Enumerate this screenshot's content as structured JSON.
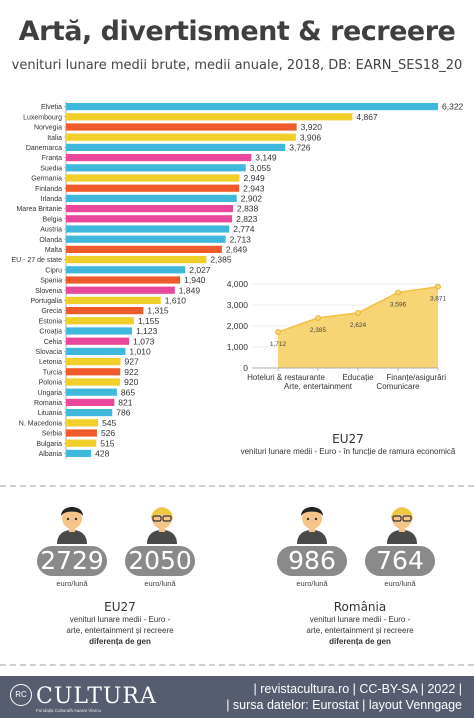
{
  "header": {
    "title": "Artă, divertisment & recreere",
    "subtitle": "venituri lunare medii brute, medii anuale, 2018, DB: EARN_SES18_20"
  },
  "chart_data": [
    {
      "type": "bar",
      "orientation": "horizontal",
      "categories": [
        "Elveția",
        "Luxembourg",
        "Norvegia",
        "Italia",
        "Danemarca",
        "Franța",
        "Suedia",
        "Germania",
        "Finlanda",
        "Irlanda",
        "Marea Britanie",
        "Belgia",
        "Austria",
        "Olanda",
        "Malta",
        "EU - 27 de state",
        "Cipru",
        "Spania",
        "Slovenia",
        "Portugalia",
        "Grecia",
        "Estonia",
        "Croația",
        "Cehia",
        "Slovacia",
        "Letonia",
        "Turcia",
        "Polonia",
        "Ungaria",
        "Romania",
        "Lituania",
        "N. Macedonia",
        "Serbia",
        "Bulgaria",
        "Albania"
      ],
      "values": [
        6322,
        4867,
        3920,
        3906,
        3726,
        3149,
        3055,
        2949,
        2943,
        2902,
        2838,
        2823,
        2774,
        2713,
        2649,
        2385,
        2027,
        1940,
        1849,
        1610,
        1315,
        1155,
        1123,
        1073,
        1010,
        927,
        922,
        920,
        865,
        821,
        786,
        545,
        526,
        515,
        428
      ],
      "value_labels": [
        "6,322",
        "4,867",
        "3,920",
        "3,906",
        "3,726",
        "3,149",
        "3,055",
        "2,949",
        "2,943",
        "2,902",
        "2,838",
        "2,823",
        "2,774",
        "2,713",
        "2,649",
        "2,385",
        "2,027",
        "1,940",
        "1,849",
        "1,610",
        "1,315",
        "1,155",
        "1,123",
        "1,073",
        "1,010",
        "927",
        "922",
        "920",
        "865",
        "821",
        "786",
        "545",
        "526",
        "515",
        "428"
      ],
      "colors": [
        "#3fb8dc",
        "#f0cf2b",
        "#ef5a2a",
        "#f0cf2b",
        "#3fb8dc",
        "#e8479b",
        "#3fb8dc",
        "#f0cf2b",
        "#ef5a2a",
        "#3fb8dc",
        "#e8479b",
        "#e8479b",
        "#3fb8dc",
        "#3fb8dc",
        "#ef5a2a",
        "#f0cf2b",
        "#3fb8dc",
        "#ef5a2a",
        "#e8479b",
        "#f0cf2b",
        "#ef5a2a",
        "#f0cf2b",
        "#3fb8dc",
        "#e8479b",
        "#3fb8dc",
        "#f0cf2b",
        "#ef5a2a",
        "#f0cf2b",
        "#3fb8dc",
        "#e8479b",
        "#3fb8dc",
        "#f0cf2b",
        "#ef5a2a",
        "#f0cf2b",
        "#3fb8dc"
      ],
      "xlim": [
        0,
        6322
      ]
    },
    {
      "type": "area",
      "categories": [
        "Hoteluri & restaurante",
        "Arte, entertainment",
        "Educație",
        "Comunicare",
        "Finanțe/asigurări"
      ],
      "values": [
        1712,
        2385,
        2624,
        3596,
        3871
      ],
      "value_labels": [
        "1,712",
        "2,385",
        "2,624",
        "3,596",
        "3,871"
      ],
      "ylim": [
        0,
        4000
      ],
      "yticks": [
        0,
        1000,
        2000,
        3000,
        4000
      ],
      "ytick_labels": [
        "0",
        "1,000",
        "2,000",
        "3,000",
        "4,000"
      ],
      "title": "EU27",
      "subtitle": "venituri lunare medii - Euro - în funcție de ramura economică",
      "color": "#f7d474"
    }
  ],
  "gender": {
    "eu": {
      "male_value": "2729",
      "female_value": "2050",
      "unit": "euro/lună",
      "title": "EU27",
      "line1": "venituri lunare medii - Euro -",
      "line2": "arte, entertainment și recreere",
      "line3": "diferența de gen"
    },
    "ro": {
      "male_value": "986",
      "female_value": "764",
      "unit": "euro/lună",
      "title": "România",
      "line1": "venituri lunare medii - Euro -",
      "line2": "arte, entertainment și recreere",
      "line3": "diferența de gen"
    }
  },
  "footer": {
    "logo_mark": "RC",
    "brand": "CULTURA",
    "brand_sub": "Fundația Culturală Aaarat Vlarcu",
    "line1": "| revistacultura.ro | CC-BY-SA | 2022 |",
    "line2": "| sursa datelor: Eurostat | layout Venngage"
  }
}
